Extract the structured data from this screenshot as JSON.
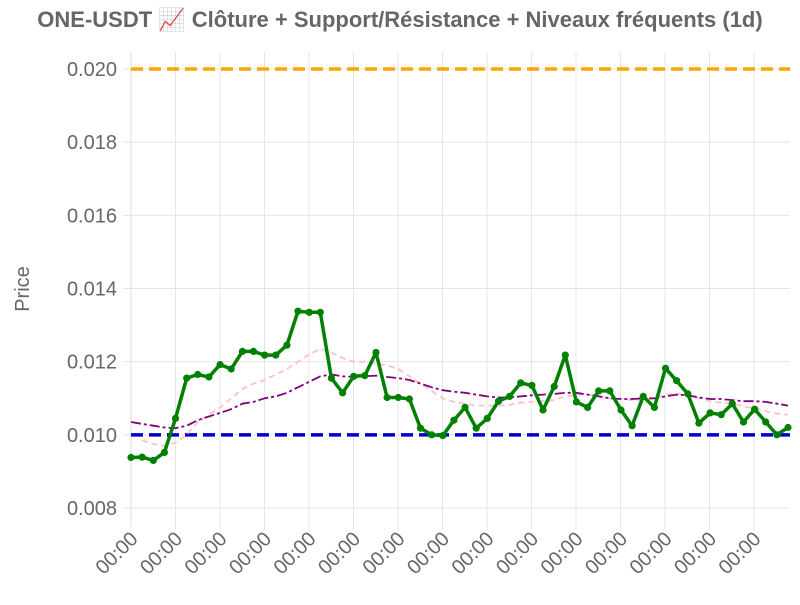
{
  "chart_data": {
    "type": "line",
    "title": "ONE-USDT 📈 Clôture + Support/Résistance + Niveaux fréquents (1d)",
    "xlabel": "",
    "ylabel": "Price",
    "ylim": [
      0.008,
      0.02
    ],
    "yticks": [
      "0.020",
      "0.018",
      "0.016",
      "0.014",
      "0.012",
      "0.010",
      "0.008"
    ],
    "xtick_labels": [
      "00:00",
      "00:00",
      "00:00",
      "00:00",
      "00:00",
      "00:00",
      "00:00",
      "00:00",
      "00:00",
      "00:00",
      "00:00",
      "00:00",
      "00:00",
      "00:00",
      "00:00"
    ],
    "grid": true,
    "legend": "none",
    "colors": {
      "close": "#008000",
      "sma_short": "#ffc0cb",
      "sma_long": "#800080",
      "support": "#0000cd",
      "resistance": "#ffa500",
      "grid": "#e5e5e5",
      "axis_text": "#666666"
    },
    "series": [
      {
        "key": "close",
        "values": [
          0.00938,
          0.00939,
          0.0093,
          0.00952,
          0.01045,
          0.01155,
          0.01165,
          0.01158,
          0.01192,
          0.0118,
          0.01228,
          0.01228,
          0.01218,
          0.01218,
          0.01245,
          0.01338,
          0.01335,
          0.01335,
          0.01155,
          0.01115,
          0.0116,
          0.01162,
          0.01225,
          0.01102,
          0.01102,
          0.01098,
          0.01018,
          0.01,
          0.00998,
          0.0104,
          0.01075,
          0.01018,
          0.01045,
          0.01092,
          0.01105,
          0.01142,
          0.01135,
          0.01068,
          0.01132,
          0.01218,
          0.0109,
          0.01075,
          0.0112,
          0.0112,
          0.01068,
          0.01025,
          0.01105,
          0.01075,
          0.01182,
          0.01148,
          0.01112,
          0.01032,
          0.0106,
          0.01055,
          0.01085,
          0.01035,
          0.0107,
          0.01035,
          0.01,
          0.0102
        ]
      },
      {
        "key": "sma_short",
        "values": [
          null,
          0.00985,
          0.00975,
          0.0097,
          0.00978,
          0.01,
          0.01035,
          0.01055,
          0.01075,
          0.011,
          0.01125,
          0.0114,
          0.0115,
          0.01165,
          0.0118,
          0.012,
          0.0122,
          0.01235,
          0.01225,
          0.0121,
          0.012,
          0.012,
          0.01195,
          0.0119,
          0.0118,
          0.0116,
          0.0114,
          0.0112,
          0.011,
          0.0109,
          0.01085,
          0.0108,
          0.0108,
          0.0108,
          0.01082,
          0.01088,
          0.0109,
          0.01092,
          0.01095,
          0.01105,
          0.0111,
          0.0111,
          0.01105,
          0.011,
          0.01098,
          0.01095,
          0.01095,
          0.011,
          0.0111,
          0.01112,
          0.01108,
          0.011,
          0.01092,
          0.01088,
          0.01085,
          0.01078,
          0.01072,
          0.01065,
          0.01058,
          0.01055
        ]
      },
      {
        "key": "sma_long",
        "values": [
          0.01035,
          0.0103,
          0.01025,
          0.0102,
          0.01018,
          0.01025,
          0.0104,
          0.0105,
          0.0106,
          0.0107,
          0.01085,
          0.0109,
          0.011,
          0.01105,
          0.01115,
          0.0113,
          0.01145,
          0.0116,
          0.01165,
          0.0116,
          0.01158,
          0.0116,
          0.01162,
          0.01158,
          0.01155,
          0.0115,
          0.0114,
          0.0113,
          0.01122,
          0.01118,
          0.01115,
          0.0111,
          0.01105,
          0.01102,
          0.01102,
          0.01105,
          0.01108,
          0.0111,
          0.01112,
          0.01115,
          0.01115,
          0.0111,
          0.01105,
          0.011,
          0.01098,
          0.01098,
          0.011,
          0.011,
          0.01105,
          0.0111,
          0.01108,
          0.01102,
          0.01098,
          0.01098,
          0.01095,
          0.01092,
          0.01092,
          0.0109,
          0.01085,
          0.0108
        ]
      }
    ],
    "support_level": 0.01,
    "resistance_level": 0.02
  }
}
